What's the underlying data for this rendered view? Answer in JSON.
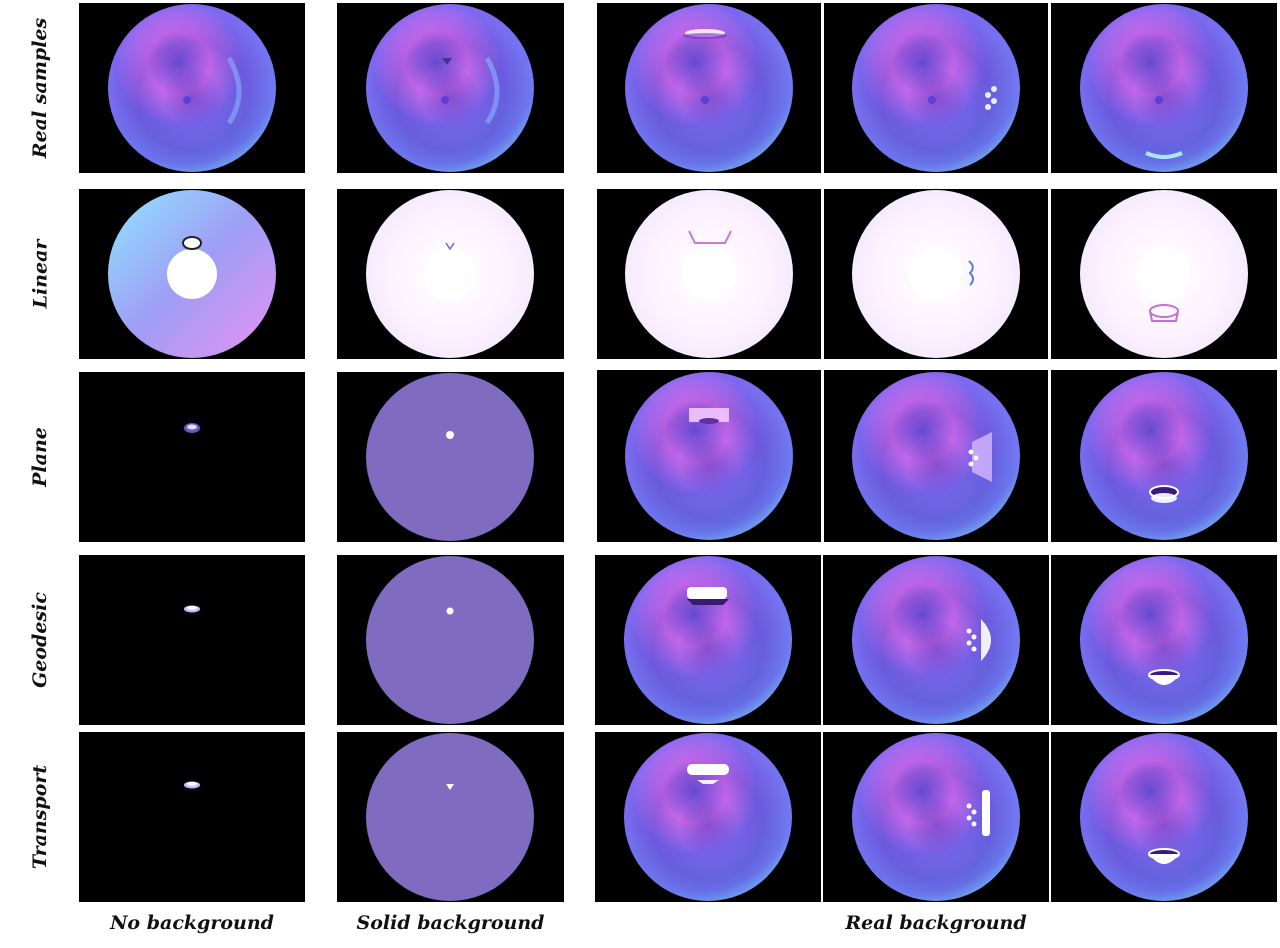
{
  "rows": [
    {
      "label": "Real samples"
    },
    {
      "label": "Linear"
    },
    {
      "label": "Plane"
    },
    {
      "label": "Geodesic"
    },
    {
      "label": "Transport"
    }
  ],
  "columns": [
    {
      "label": "No background"
    },
    {
      "label": "Solid background"
    },
    {
      "label": "Real background"
    }
  ],
  "colors": {
    "panel_black": "#000000",
    "solid_purple": "#7f6cc0",
    "normal_magenta": "#e070f0",
    "normal_blue": "#6a6cf2",
    "normal_cyan": "#6fd2f2",
    "washed_white": "#fdf8ff"
  }
}
